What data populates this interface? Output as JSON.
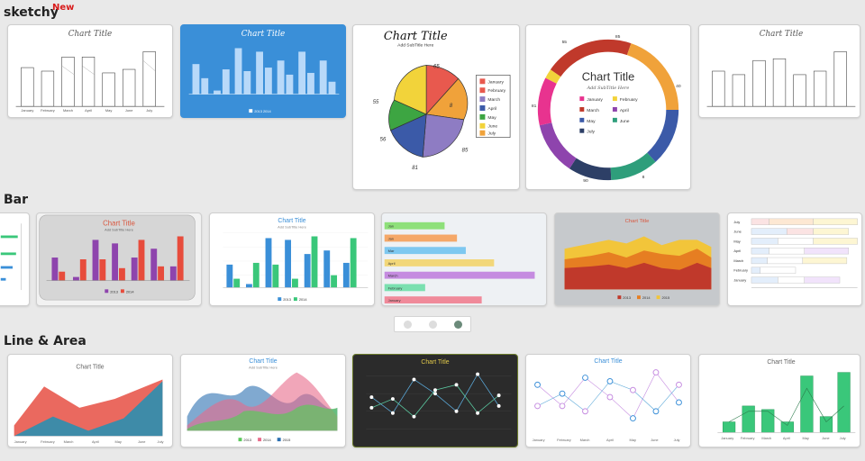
{
  "sections": {
    "sketchy": {
      "title": "sketchy",
      "badge": "New"
    },
    "bar": {
      "title": "Bar"
    },
    "line": {
      "title": "Line & Area"
    }
  },
  "cards": {
    "chart_title": "Chart Title",
    "subtitle": "Add SubTitle Here",
    "months": [
      "January",
      "February",
      "March",
      "April",
      "May",
      "June",
      "July"
    ],
    "months_short": [
      "January",
      "February",
      "March",
      "April",
      "May",
      "June",
      "July"
    ],
    "legend_years": [
      "2013",
      "2014",
      "2015"
    ],
    "sketch_pie_labels": [
      "65",
      "8",
      "85",
      "81",
      "56",
      "55"
    ],
    "sketch_donut_labels": [
      "55",
      "40",
      "8",
      "90",
      "81",
      "85"
    ],
    "hbar_labels": [
      "Jan",
      "Jan",
      "Mar",
      "April",
      "March",
      "February",
      "January"
    ],
    "stacked_months": [
      "July",
      "June",
      "May",
      "April",
      "March",
      "February",
      "January"
    ]
  },
  "pager": {
    "pages": 3,
    "active": 3
  },
  "colors": {
    "accent_red": "#d81b1b",
    "blue_card": "#3a8fd8",
    "dark_card": "#2b2b2b"
  }
}
